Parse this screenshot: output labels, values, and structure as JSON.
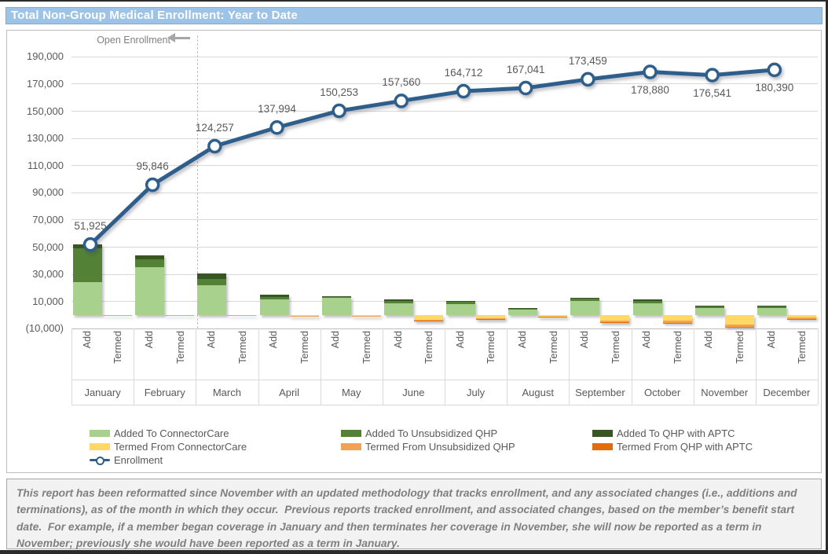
{
  "window": {
    "title_bar": "Total Non-Group Medical Enrollment: Year to Date"
  },
  "note": {
    "text": "This report has been reformatted since November with an updated methodology that tracks enrollment, and any associated changes (i.e., additions and terminations), as of the month in which they occur.  Previous reports tracked enrollment, and associated changes, based on the member’s benefit start date.  For example, if a member began coverage in January and then terminates her coverage in November, she will now be reported as a term in November; previously she would have been reported as a term in January."
  },
  "chart_data": {
    "type": "combo-bar-line",
    "title": "Total Non-Group Medical Enrollment: Year to Date",
    "annotation": {
      "label": "Open Enrollment",
      "arrow": "left",
      "divider_after_month": "February"
    },
    "y_axis": {
      "min": -10000,
      "max": 190000,
      "step": 20000,
      "grid": true,
      "ticks": [
        {
          "value": 190000,
          "label": "190,000"
        },
        {
          "value": 170000,
          "label": "170,000"
        },
        {
          "value": 150000,
          "label": "150,000"
        },
        {
          "value": 130000,
          "label": "130,000"
        },
        {
          "value": 110000,
          "label": "110,000"
        },
        {
          "value": 90000,
          "label": "90,000"
        },
        {
          "value": 70000,
          "label": "70,000"
        },
        {
          "value": 50000,
          "label": "50,000"
        },
        {
          "value": 30000,
          "label": "30,000"
        },
        {
          "value": 10000,
          "label": "10,000"
        },
        {
          "value": -10000,
          "label": "(10,000)"
        }
      ]
    },
    "categories": [
      "January",
      "February",
      "March",
      "April",
      "May",
      "June",
      "July",
      "August",
      "September",
      "October",
      "November",
      "December"
    ],
    "bar_group_labels": [
      "Add",
      "Termed"
    ],
    "line_series": {
      "name": "Enrollment",
      "color": "#2E5F8C",
      "values": [
        51925,
        95846,
        124257,
        137994,
        150253,
        157560,
        164712,
        167041,
        173459,
        178880,
        176541,
        180390
      ],
      "label_side": [
        "above",
        "above",
        "above",
        "above",
        "above",
        "above",
        "above",
        "above",
        "above",
        "below",
        "below",
        "below"
      ]
    },
    "add_series": [
      {
        "name": "Added To ConnectorCare",
        "color": "#A9D18E",
        "values": [
          24000,
          35000,
          22000,
          11500,
          12500,
          8700,
          8300,
          4000,
          10500,
          8500,
          5200,
          5300
        ]
      },
      {
        "name": "Added To Unsubsidized QHP",
        "color": "#538135",
        "values": [
          25000,
          6000,
          4500,
          2000,
          1000,
          1800,
          1500,
          800,
          1600,
          2000,
          1300,
          1200
        ]
      },
      {
        "name": "Added To QHP with APTC",
        "color": "#375623",
        "values": [
          3000,
          3000,
          4000,
          1500,
          500,
          1000,
          700,
          400,
          700,
          1000,
          500,
          500
        ]
      }
    ],
    "termed_series": [
      {
        "name": "Termed From ConnectorCare",
        "color": "#FFD966",
        "values": [
          0,
          0,
          -200,
          -300,
          -400,
          -3200,
          -2200,
          -900,
          -4300,
          -4300,
          -7000,
          -2000
        ]
      },
      {
        "name": "Termed From Unsubsidized QHP",
        "color": "#F3A153",
        "values": [
          -300,
          -400,
          -600,
          -600,
          -700,
          -1000,
          -800,
          -500,
          -1000,
          -1200,
          -1500,
          -700
        ]
      },
      {
        "name": "Termed From QHP with APTC",
        "color": "#E36C0A",
        "values": [
          0,
          0,
          0,
          0,
          0,
          -300,
          -200,
          -100,
          -200,
          -200,
          -300,
          -200
        ]
      }
    ],
    "legend": [
      {
        "label": "Added To ConnectorCare",
        "color": "#A9D18E",
        "row": 0,
        "col": 0,
        "type": "box"
      },
      {
        "label": "Added To Unsubsidized QHP",
        "color": "#538135",
        "row": 0,
        "col": 1,
        "type": "box"
      },
      {
        "label": "Added To QHP with APTC",
        "color": "#375623",
        "row": 0,
        "col": 2,
        "type": "box"
      },
      {
        "label": "Termed From ConnectorCare",
        "color": "#FFD966",
        "row": 1,
        "col": 0,
        "type": "box"
      },
      {
        "label": "Termed From Unsubsidized QHP",
        "color": "#F3A153",
        "row": 1,
        "col": 1,
        "type": "box"
      },
      {
        "label": "Termed From QHP with APTC",
        "color": "#E36C0A",
        "row": 1,
        "col": 2,
        "type": "box"
      },
      {
        "label": "Enrollment",
        "color": "#2E5F8C",
        "row": 2,
        "col": 0,
        "type": "line"
      }
    ]
  }
}
